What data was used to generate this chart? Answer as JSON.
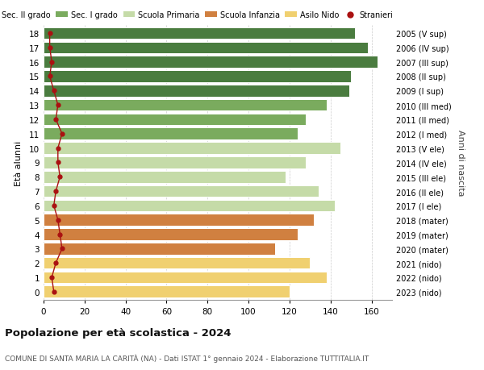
{
  "ages": [
    18,
    17,
    16,
    15,
    14,
    13,
    12,
    11,
    10,
    9,
    8,
    7,
    6,
    5,
    4,
    3,
    2,
    1,
    0
  ],
  "values": [
    152,
    158,
    163,
    150,
    149,
    138,
    128,
    124,
    145,
    128,
    118,
    134,
    142,
    132,
    124,
    113,
    130,
    138,
    120
  ],
  "stranieri": [
    3,
    3,
    4,
    3,
    5,
    7,
    6,
    9,
    7,
    7,
    8,
    6,
    5,
    7,
    8,
    9,
    6,
    4,
    5
  ],
  "right_labels": [
    "2005 (V sup)",
    "2006 (IV sup)",
    "2007 (III sup)",
    "2008 (II sup)",
    "2009 (I sup)",
    "2010 (III med)",
    "2011 (II med)",
    "2012 (I med)",
    "2013 (V ele)",
    "2014 (IV ele)",
    "2015 (III ele)",
    "2016 (II ele)",
    "2017 (I ele)",
    "2018 (mater)",
    "2019 (mater)",
    "2020 (mater)",
    "2021 (nido)",
    "2022 (nido)",
    "2023 (nido)"
  ],
  "bar_colors": [
    "#4a7c3f",
    "#4a7c3f",
    "#4a7c3f",
    "#4a7c3f",
    "#4a7c3f",
    "#7aab5e",
    "#7aab5e",
    "#7aab5e",
    "#c5dba8",
    "#c5dba8",
    "#c5dba8",
    "#c5dba8",
    "#c5dba8",
    "#d08040",
    "#d08040",
    "#d08040",
    "#f0d070",
    "#f0d070",
    "#f0d070"
  ],
  "legend_labels": [
    "Sec. II grado",
    "Sec. I grado",
    "Scuola Primaria",
    "Scuola Infanzia",
    "Asilo Nido",
    "Stranieri"
  ],
  "legend_colors": [
    "#4a7c3f",
    "#7aab5e",
    "#c5dba8",
    "#d08040",
    "#f0d070",
    "#aa1111"
  ],
  "ylabel": "Età alunni",
  "right_ylabel": "Anni di nascita",
  "title": "Popolazione per età scolastica - 2024",
  "subtitle": "COMUNE DI SANTA MARIA LA CARITÀ (NA) - Dati ISTAT 1° gennaio 2024 - Elaborazione TUTTITALIA.IT",
  "xlim": [
    0,
    170
  ],
  "xticks": [
    0,
    20,
    40,
    60,
    80,
    100,
    120,
    140,
    160
  ],
  "bg_color": "#ffffff",
  "plot_bg_color": "#ffffff",
  "grid_color": "#cccccc",
  "bar_edge_color": "white",
  "stranieri_color": "#aa1111",
  "stranieri_line_color": "#aa1111"
}
